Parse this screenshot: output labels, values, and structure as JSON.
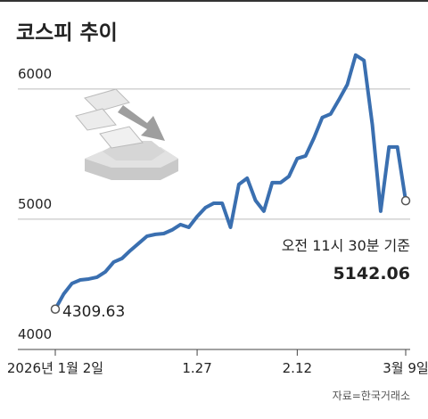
{
  "chart_data": {
    "type": "line",
    "title": "코스피 추이",
    "categories": [
      "2026년 1월 2일",
      null,
      null,
      null,
      null,
      null,
      null,
      null,
      null,
      null,
      null,
      null,
      null,
      null,
      null,
      null,
      null,
      "1.27",
      null,
      null,
      null,
      null,
      null,
      null,
      null,
      null,
      null,
      null,
      null,
      "2.12",
      null,
      null,
      null,
      null,
      null,
      null,
      null,
      null,
      null,
      null,
      null,
      null,
      "3월 9일"
    ],
    "series": [
      {
        "name": "코스피",
        "color": "#3a6fb0",
        "values": [
          4309.63,
          4425,
          4507,
          4534,
          4541,
          4555,
          4596,
          4671,
          4699,
          4760,
          4815,
          4870,
          4884,
          4890,
          4918,
          4959,
          4938,
          5021,
          5089,
          5123,
          5123,
          4938,
          5267,
          5315,
          5144,
          5062,
          5281,
          5281,
          5329,
          5466,
          5486,
          5623,
          5781,
          5808,
          5918,
          6034,
          6260,
          6219,
          5726,
          5062,
          5555,
          5555,
          5142.06
        ]
      }
    ],
    "ylim": [
      4000,
      6300
    ],
    "yticks": [
      4000,
      5000,
      6000
    ],
    "grid": true,
    "annotation": "오전 11시 30분 기준",
    "source": "자료=한국거래소"
  }
}
